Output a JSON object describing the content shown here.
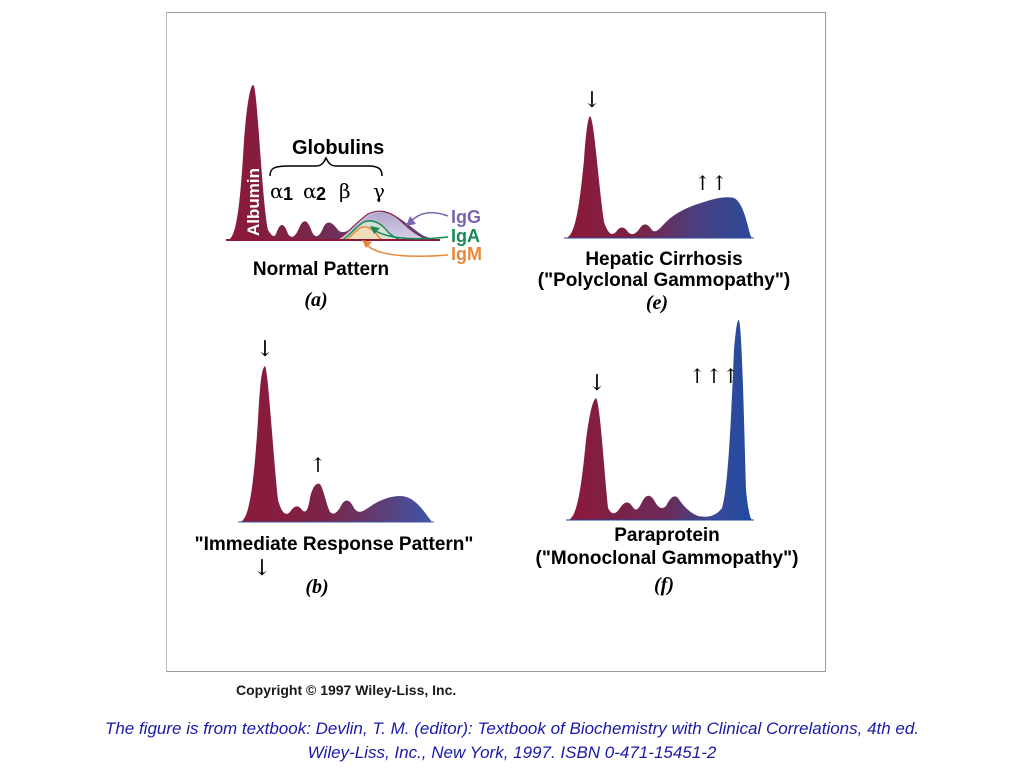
{
  "panels": {
    "a": {
      "albumin_label": "Albumin",
      "globulins_label": "Globulins",
      "alpha1_symbol": "α",
      "alpha1_number": "1",
      "alpha2_symbol": "α",
      "alpha2_number": "2",
      "beta_label": "β",
      "gamma_label": "γ",
      "igg_label": "IgG",
      "iga_label": "IgA",
      "igm_label": "IgM",
      "title": "Normal Pattern",
      "letter": "(a)"
    },
    "e": {
      "title_line1": "Hepatic Cirrhosis",
      "title_line2": "(\"Polyclonal Gammopathy\")",
      "letter": "(e)",
      "albumin_arrow": "↓",
      "gamma_arrows": "↑↑"
    },
    "b": {
      "title": "\"Immediate Response Pattern\"",
      "letter": "(b)",
      "albumin_arrow": "↓",
      "alpha2_arrow": "↑",
      "below_title_arrow": "↓"
    },
    "f": {
      "title_line1": "Paraprotein",
      "title_line2": "(\"Monoclonal Gammopathy\")",
      "letter": "(f)",
      "albumin_arrow": "↓",
      "gamma_arrows": "↑↑↑"
    }
  },
  "colors": {
    "albumin": "#8e1838",
    "globulin_mid": "#5e3f78",
    "gamma": "#2a4a9a",
    "igg": "#7a66b0",
    "iga": "#178a55",
    "igm": "#e8893a",
    "citation": "#1a1aa8"
  },
  "copyright": "Copyright © 1997 Wiley-Liss, Inc.",
  "citation_line1": "The figure is from textbook: Devlin, T. M. (editor): Textbook of Biochemistry with Clinical Correlations, 4th ed.",
  "citation_line2": "Wiley-Liss, Inc., New York, 1997. ISBN 0-471-15451-2"
}
